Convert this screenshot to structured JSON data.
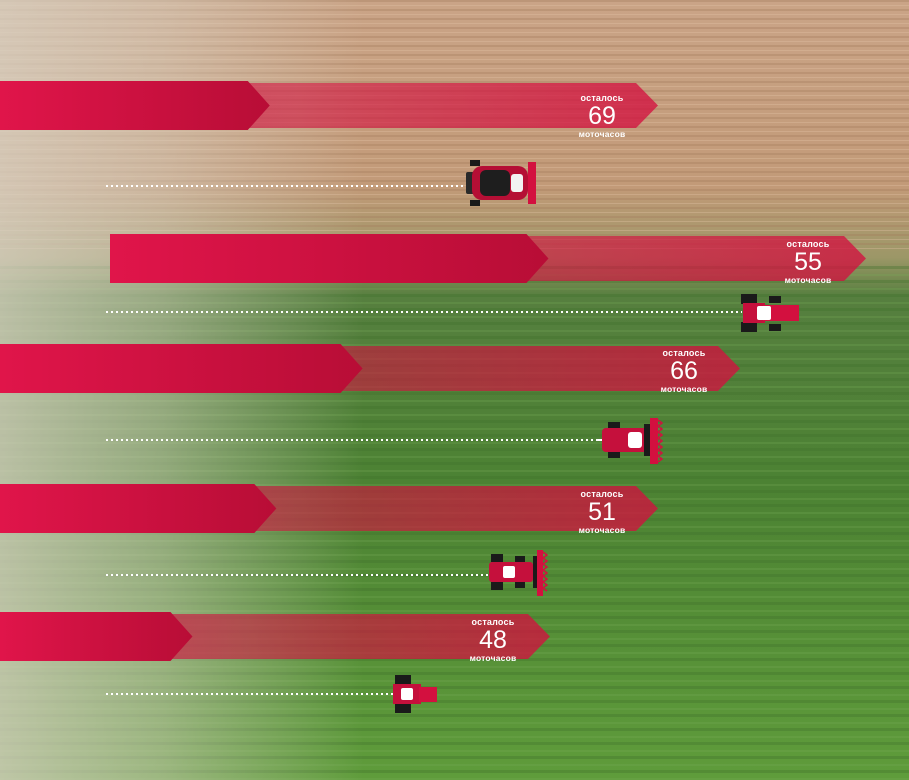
{
  "colors": {
    "accent": "#d3103f",
    "soil": "#c9a07e",
    "crop": "#4e8a3a",
    "dotted_line": "#ffffff"
  },
  "machines": [
    {
      "label_top": "осталось",
      "hours": "69",
      "label_bottom": "моточасов",
      "vehicle": "combine-harvester-icon",
      "bar_progress": 0.41
    },
    {
      "label_top": "осталось",
      "hours": "55",
      "label_bottom": "моточасов",
      "vehicle": "tractor-icon",
      "bar_progress": 0.58
    },
    {
      "label_top": "осталось",
      "hours": "66",
      "label_bottom": "моточасов",
      "vehicle": "forage-harvester-icon",
      "bar_progress": 0.49
    },
    {
      "label_top": "осталось",
      "hours": "51",
      "label_bottom": "моточасов",
      "vehicle": "sprayer-tractor-icon",
      "bar_progress": 0.42
    },
    {
      "label_top": "осталось",
      "hours": "48",
      "label_bottom": "моточасов",
      "vehicle": "small-tractor-icon",
      "bar_progress": 0.35
    }
  ]
}
